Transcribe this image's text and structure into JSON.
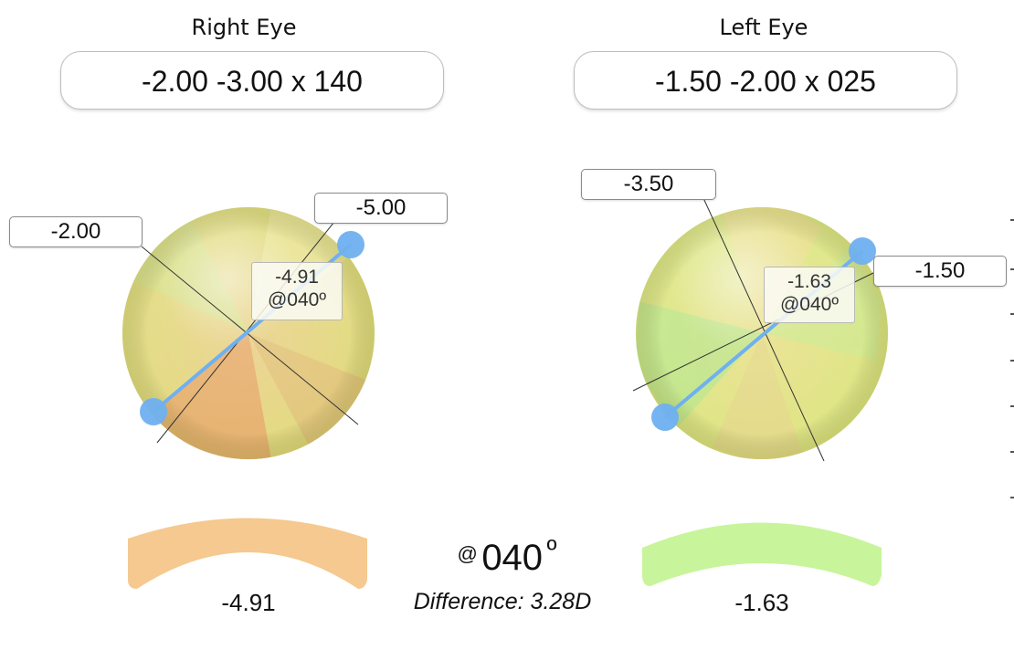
{
  "right_eye": {
    "title": "Right Eye",
    "prescription": "-2.00 -3.00 x 140",
    "meridian_labels": [
      "-2.00",
      "-5.00"
    ],
    "meridian_angles_deg": [
      140,
      50
    ],
    "readout_power": "-4.91",
    "readout_axis": "@040º",
    "lens_power": "-4.91",
    "lens_color": "#f5c98f"
  },
  "left_eye": {
    "title": "Left Eye",
    "prescription": "-1.50 -2.00 x 025",
    "meridian_labels": [
      "-3.50",
      "-1.50"
    ],
    "meridian_angles_deg": [
      115,
      25
    ],
    "readout_power": "-1.63",
    "readout_axis": "@040º",
    "lens_power": "-1.63",
    "lens_color": "#c8f59b"
  },
  "comparison": {
    "axis_prefix": "@",
    "axis": "040",
    "degree_symbol": "º",
    "difference": "Difference: 3.28D",
    "handle_color": "#6fb0f0"
  }
}
